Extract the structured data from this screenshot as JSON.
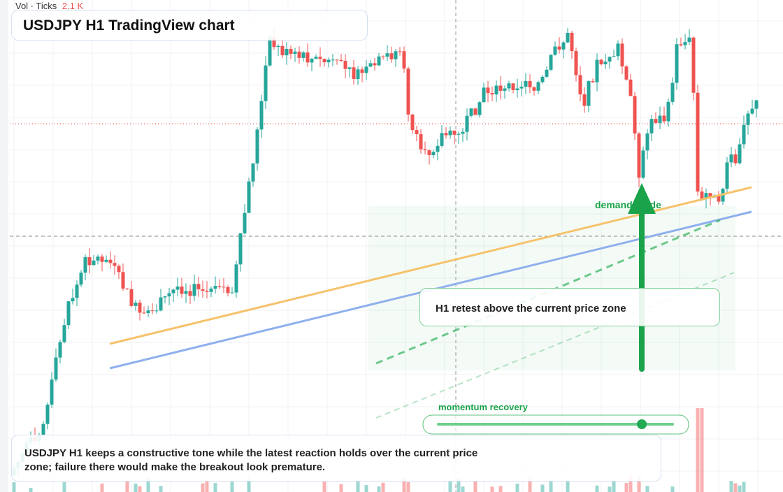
{
  "toolbar": {
    "indicator": "Vol · Ticks",
    "value": "2.1 K"
  },
  "header": {
    "title": "USDJPY H1 TradingView chart"
  },
  "annotations": {
    "zone_label": "demand guide",
    "callout": "H1 retest above the current price zone",
    "slider_label": "momentum recovery"
  },
  "caption": "USDJPY H1 keeps a constructive tone while the latest reaction holds over the current price zone; failure there would make the breakout look premature."
}
